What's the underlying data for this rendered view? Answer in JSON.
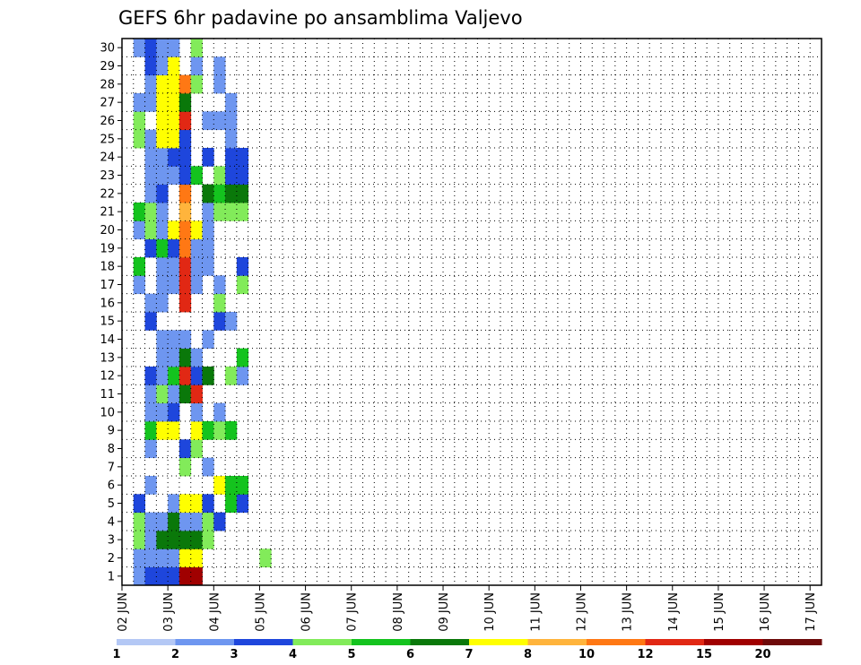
{
  "chart_data": {
    "type": "heatmap",
    "title": "GEFS 6hr padavine po ansamblima Valjevo",
    "x_labels": [
      "02 JUN",
      "03 JUN",
      "04 JUN",
      "05 JUN",
      "06 JUN",
      "07 JUN",
      "08 JUN",
      "09 JUN",
      "10 JUN",
      "11 JUN",
      "12 JUN",
      "13 JUN",
      "14 JUN",
      "15 JUN",
      "16 JUN",
      "17 JUN"
    ],
    "y_labels": [
      "1",
      "2",
      "3",
      "4",
      "5",
      "6",
      "7",
      "8",
      "9",
      "10",
      "11",
      "12",
      "13",
      "14",
      "15",
      "16",
      "17",
      "18",
      "19",
      "20",
      "21",
      "22",
      "23",
      "24",
      "25",
      "26",
      "27",
      "28",
      "29",
      "30"
    ],
    "members": 30,
    "time_steps": 61,
    "step_hours": 6,
    "grid": true,
    "colorbar": {
      "labels": [
        "1",
        "2",
        "3",
        "4",
        "5",
        "6",
        "7",
        "8",
        "10",
        "12",
        "15",
        "20"
      ],
      "colors": [
        "#b4c8f5",
        "#6e96f0",
        "#1e46dc",
        "#82eb5a",
        "#14c31e",
        "#0a780a",
        "#ffff00",
        "#ffb43c",
        "#ff7814",
        "#e12814",
        "#a00000",
        "#6e0a0a"
      ]
    },
    "cells": [
      [
        1,
        0,
        1
      ],
      [
        1,
        1,
        1
      ],
      [
        1,
        2,
        3
      ],
      [
        1,
        3,
        3
      ],
      [
        1,
        4,
        2
      ],
      [
        1,
        16,
        1
      ],
      [
        1,
        17,
        4
      ],
      [
        1,
        19,
        1
      ],
      [
        1,
        20,
        4
      ],
      [
        1,
        24,
        3
      ],
      [
        1,
        25,
        3
      ],
      [
        1,
        26,
        1
      ],
      [
        1,
        29,
        1
      ],
      [
        2,
        0,
        2
      ],
      [
        2,
        1,
        1
      ],
      [
        2,
        2,
        1
      ],
      [
        2,
        3,
        1
      ],
      [
        2,
        5,
        1
      ],
      [
        2,
        7,
        1
      ],
      [
        2,
        8,
        4
      ],
      [
        2,
        9,
        1
      ],
      [
        2,
        10,
        1
      ],
      [
        2,
        11,
        2
      ],
      [
        2,
        14,
        2
      ],
      [
        2,
        15,
        1
      ],
      [
        2,
        18,
        2
      ],
      [
        2,
        19,
        3
      ],
      [
        2,
        20,
        3
      ],
      [
        2,
        21,
        1
      ],
      [
        2,
        22,
        1
      ],
      [
        2,
        23,
        1
      ],
      [
        2,
        24,
        1
      ],
      [
        2,
        26,
        1
      ],
      [
        2,
        27,
        1
      ],
      [
        2,
        28,
        2
      ],
      [
        2,
        29,
        2
      ],
      [
        3,
        0,
        2
      ],
      [
        3,
        1,
        1
      ],
      [
        3,
        2,
        5
      ],
      [
        3,
        3,
        1
      ],
      [
        3,
        8,
        6
      ],
      [
        3,
        9,
        1
      ],
      [
        3,
        10,
        3
      ],
      [
        3,
        11,
        1
      ],
      [
        3,
        12,
        1
      ],
      [
        3,
        13,
        1
      ],
      [
        3,
        15,
        1
      ],
      [
        3,
        16,
        1
      ],
      [
        3,
        17,
        1
      ],
      [
        3,
        18,
        4
      ],
      [
        3,
        19,
        1
      ],
      [
        3,
        20,
        1
      ],
      [
        3,
        21,
        2
      ],
      [
        3,
        22,
        1
      ],
      [
        3,
        23,
        1
      ],
      [
        3,
        24,
        6
      ],
      [
        3,
        25,
        6
      ],
      [
        3,
        26,
        6
      ],
      [
        3,
        27,
        6
      ],
      [
        3,
        28,
        1
      ],
      [
        3,
        29,
        1
      ],
      [
        4,
        0,
        2
      ],
      [
        4,
        1,
        1
      ],
      [
        4,
        2,
        5
      ],
      [
        4,
        3,
        5
      ],
      [
        4,
        4,
        1
      ],
      [
        4,
        8,
        6
      ],
      [
        4,
        9,
        2
      ],
      [
        4,
        10,
        1
      ],
      [
        4,
        11,
        4
      ],
      [
        4,
        12,
        1
      ],
      [
        4,
        13,
        1
      ],
      [
        4,
        16,
        1
      ],
      [
        4,
        17,
        1
      ],
      [
        4,
        18,
        2
      ],
      [
        4,
        19,
        6
      ],
      [
        4,
        22,
        1
      ],
      [
        4,
        23,
        2
      ],
      [
        4,
        24,
        6
      ],
      [
        4,
        25,
        6
      ],
      [
        4,
        26,
        6
      ],
      [
        4,
        27,
        6
      ],
      [
        4,
        28,
        6
      ],
      [
        4,
        29,
        1
      ],
      [
        5,
        0,
        10
      ],
      [
        5,
        1,
        6
      ],
      [
        5,
        2,
        5
      ],
      [
        5,
        3,
        1
      ],
      [
        5,
        4,
        6
      ],
      [
        5,
        6,
        3
      ],
      [
        5,
        7,
        2
      ],
      [
        5,
        10,
        5
      ],
      [
        5,
        11,
        9
      ],
      [
        5,
        12,
        5
      ],
      [
        5,
        13,
        1
      ],
      [
        5,
        15,
        9
      ],
      [
        5,
        16,
        9
      ],
      [
        5,
        17,
        9
      ],
      [
        5,
        18,
        8
      ],
      [
        5,
        19,
        8
      ],
      [
        5,
        20,
        7
      ],
      [
        5,
        21,
        8
      ],
      [
        5,
        22,
        2
      ],
      [
        5,
        23,
        2
      ],
      [
        5,
        24,
        2
      ],
      [
        5,
        25,
        9
      ],
      [
        5,
        26,
        5
      ],
      [
        5,
        27,
        8
      ],
      [
        6,
        0,
        10
      ],
      [
        6,
        1,
        6
      ],
      [
        6,
        2,
        5
      ],
      [
        6,
        3,
        1
      ],
      [
        6,
        4,
        6
      ],
      [
        6,
        7,
        3
      ],
      [
        6,
        8,
        6
      ],
      [
        6,
        9,
        1
      ],
      [
        6,
        10,
        9
      ],
      [
        6,
        11,
        2
      ],
      [
        6,
        12,
        1
      ],
      [
        6,
        16,
        1
      ],
      [
        6,
        17,
        1
      ],
      [
        6,
        18,
        1
      ],
      [
        6,
        19,
        6
      ],
      [
        6,
        22,
        4
      ],
      [
        6,
        27,
        3
      ],
      [
        6,
        28,
        1
      ],
      [
        6,
        29,
        3
      ],
      [
        7,
        2,
        3
      ],
      [
        7,
        3,
        3
      ],
      [
        7,
        4,
        2
      ],
      [
        7,
        6,
        1
      ],
      [
        7,
        8,
        4
      ],
      [
        7,
        11,
        5
      ],
      [
        7,
        13,
        1
      ],
      [
        7,
        17,
        1
      ],
      [
        7,
        18,
        1
      ],
      [
        7,
        19,
        1
      ],
      [
        7,
        20,
        1
      ],
      [
        7,
        21,
        5
      ],
      [
        7,
        23,
        2
      ],
      [
        7,
        25,
        1
      ],
      [
        8,
        3,
        2
      ],
      [
        8,
        5,
        6
      ],
      [
        8,
        8,
        3
      ],
      [
        8,
        9,
        1
      ],
      [
        8,
        14,
        2
      ],
      [
        8,
        15,
        3
      ],
      [
        8,
        16,
        1
      ],
      [
        8,
        20,
        3
      ],
      [
        8,
        21,
        4
      ],
      [
        8,
        22,
        3
      ],
      [
        8,
        25,
        1
      ],
      [
        8,
        27,
        1
      ],
      [
        8,
        28,
        1
      ],
      [
        9,
        4,
        4
      ],
      [
        9,
        5,
        4
      ],
      [
        9,
        8,
        4
      ],
      [
        9,
        11,
        3
      ],
      [
        9,
        14,
        1
      ],
      [
        9,
        20,
        3
      ],
      [
        9,
        21,
        5
      ],
      [
        9,
        22,
        2
      ],
      [
        9,
        23,
        2
      ],
      [
        9,
        24,
        1
      ],
      [
        9,
        25,
        1
      ],
      [
        9,
        26,
        1
      ],
      [
        10,
        4,
        2
      ],
      [
        10,
        5,
        4
      ],
      [
        10,
        11,
        1
      ],
      [
        10,
        12,
        4
      ],
      [
        10,
        16,
        3
      ],
      [
        10,
        17,
        2
      ],
      [
        10,
        20,
        3
      ],
      [
        10,
        21,
        5
      ],
      [
        10,
        22,
        2
      ],
      [
        10,
        23,
        2
      ],
      [
        12,
        1,
        3
      ]
    ]
  }
}
